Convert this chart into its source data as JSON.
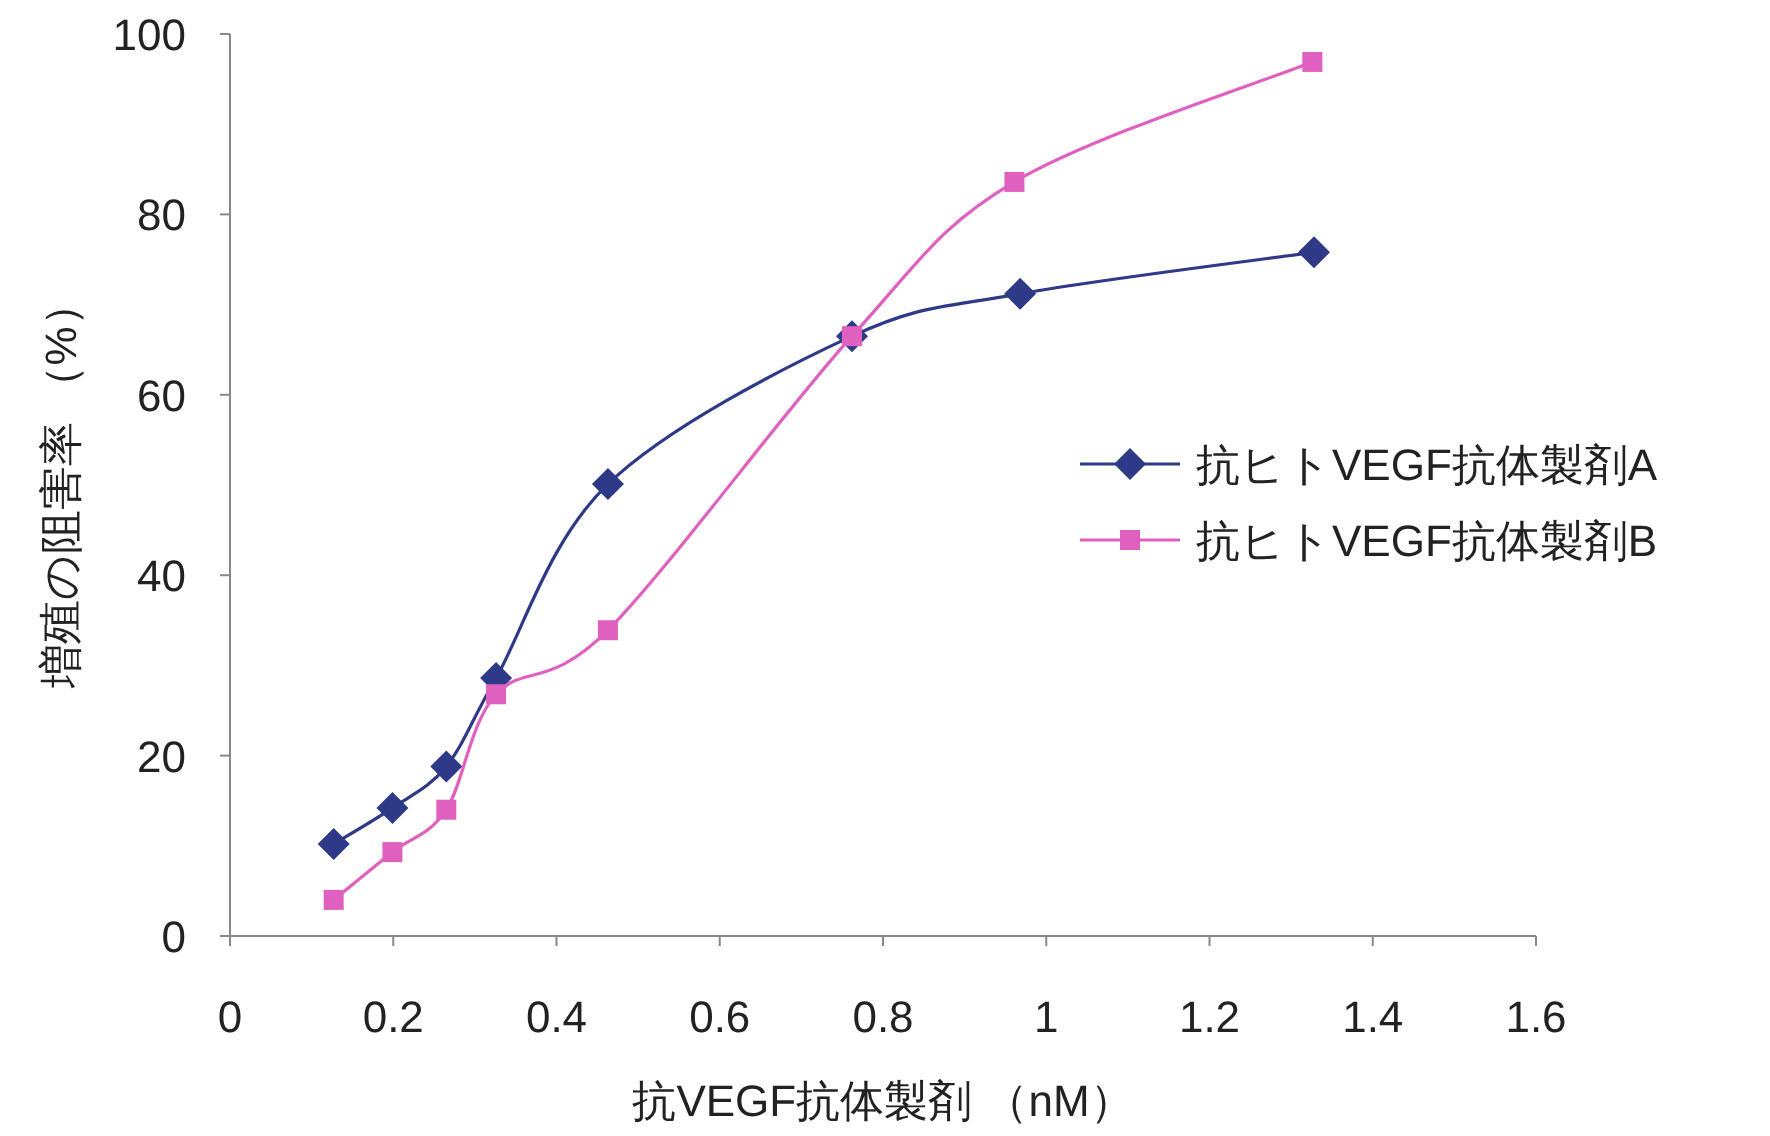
{
  "chart_data": {
    "type": "line",
    "xlabel": "抗VEGF抗体製剤 （nM）",
    "ylabel": "増殖の阻害率 （%）",
    "xlim": [
      0,
      1.6
    ],
    "xticks": [
      0,
      0.2,
      0.4,
      0.6,
      0.8,
      1,
      1.2,
      1.4,
      1.6
    ],
    "ylim": [
      0,
      100
    ],
    "yticks": [
      0,
      20,
      40,
      60,
      80,
      100
    ],
    "grid": false,
    "legend": "right",
    "line_style": "solid",
    "series": [
      {
        "name": "抗ヒトVEGF抗体製剤A",
        "color": "#2e3a87",
        "marker": "diamond",
        "x": [
          0.127,
          0.199,
          0.265,
          0.326,
          0.463,
          0.762,
          0.968,
          1.328
        ],
        "values": [
          10.2,
          14.2,
          18.8,
          28.6,
          50.1,
          66.5,
          71.2,
          75.8
        ]
      },
      {
        "name": "抗ヒトVEGF抗体製剤B",
        "color": "#e060c0",
        "marker": "square",
        "x": [
          0.127,
          0.199,
          0.265,
          0.326,
          0.463,
          0.762,
          0.961,
          1.326
        ],
        "values": [
          4.0,
          9.3,
          14.0,
          26.8,
          33.9,
          66.5,
          83.6,
          96.9
        ]
      }
    ]
  }
}
